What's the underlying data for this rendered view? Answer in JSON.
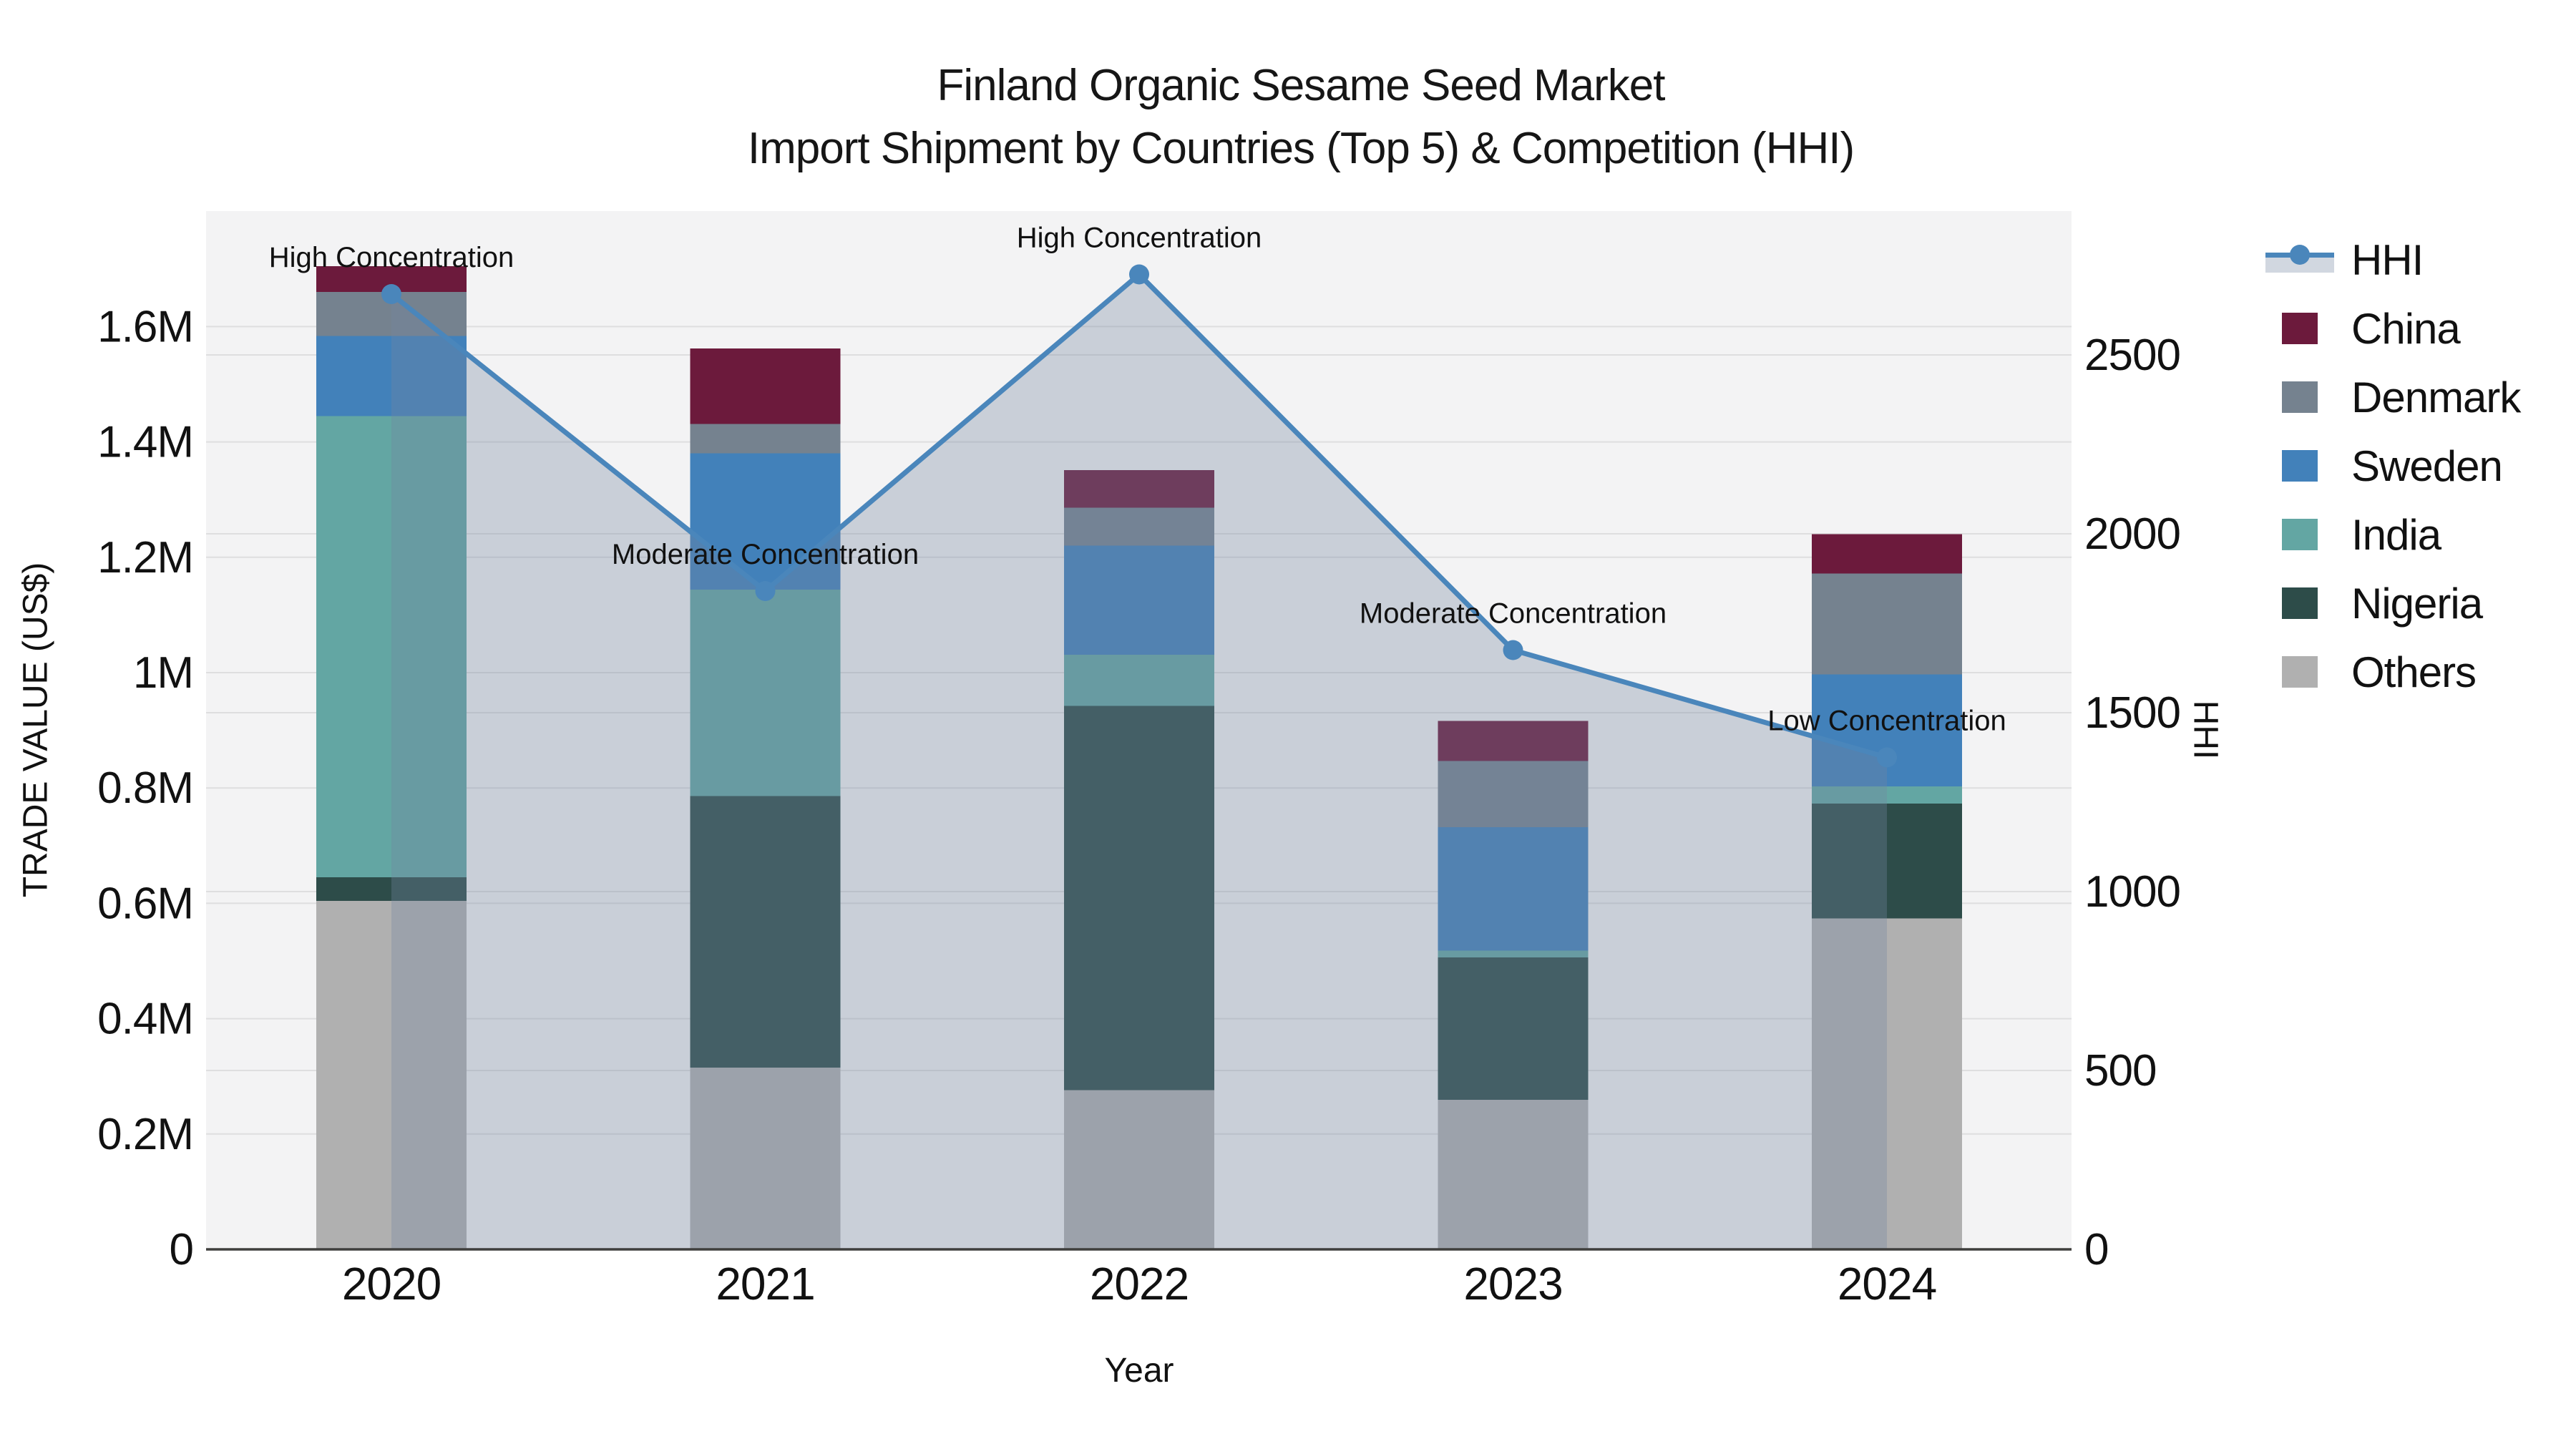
{
  "title": {
    "line1": "Finland Organic Sesame Seed Market",
    "line2": "Import Shipment by Countries (Top 5) & Competition (HHI)"
  },
  "axes": {
    "x_title": "Year",
    "y_left_title": "TRADE VALUE (US$)",
    "y_right_title": "HHI"
  },
  "colors": {
    "plot_background": "#F3F3F4",
    "gridline": "#DEDEDF",
    "axis_line": "#3F3F3D",
    "text": "#111111",
    "hhi_line": "#4A86BB",
    "hhi_area_fill": "rgba(114,135,162,0.33)",
    "china": "#6C1A3C",
    "denmark": "#75828F",
    "sweden": "#4281BA",
    "india": "#63A6A3",
    "nigeria": "#2D4C49",
    "others": "#B0B0B0"
  },
  "legend": {
    "items": [
      {
        "label": "HHI",
        "type": "line",
        "color": "#4A86BB"
      },
      {
        "label": "China",
        "type": "swatch",
        "color": "#6C1A3C"
      },
      {
        "label": "Denmark",
        "type": "swatch",
        "color": "#75828F"
      },
      {
        "label": "Sweden",
        "type": "swatch",
        "color": "#4281BA"
      },
      {
        "label": "India",
        "type": "swatch",
        "color": "#63A6A3"
      },
      {
        "label": "Nigeria",
        "type": "swatch",
        "color": "#2D4C49"
      },
      {
        "label": "Others",
        "type": "swatch",
        "color": "#B0B0B0"
      }
    ]
  },
  "chart_data": {
    "type": "bar",
    "subtype": "stacked-bars-with-line-overlay",
    "title": "Finland Organic Sesame Seed Market — Import Shipment by Countries (Top 5) & Competition (HHI)",
    "xlabel": "Year",
    "ylabel_left": "TRADE VALUE (US$)",
    "ylabel_right": "HHI",
    "categories": [
      "2020",
      "2021",
      "2022",
      "2023",
      "2024"
    ],
    "bar_value_unit": "million US$",
    "series": [
      {
        "name": "Others",
        "color": "#B0B0B0",
        "values": [
          0.604,
          0.315,
          0.276,
          0.259,
          0.574
        ]
      },
      {
        "name": "Nigeria",
        "color": "#2D4C49",
        "values": [
          0.041,
          0.471,
          0.666,
          0.247,
          0.199
        ]
      },
      {
        "name": "India",
        "color": "#63A6A3",
        "values": [
          0.8,
          0.358,
          0.089,
          0.012,
          0.03
        ]
      },
      {
        "name": "Sweden",
        "color": "#4281BA",
        "values": [
          0.139,
          0.236,
          0.189,
          0.214,
          0.194
        ]
      },
      {
        "name": "Denmark",
        "color": "#75828F",
        "values": [
          0.076,
          0.051,
          0.066,
          0.115,
          0.175
        ]
      },
      {
        "name": "China",
        "color": "#6C1A3C",
        "values": [
          0.045,
          0.131,
          0.065,
          0.069,
          0.068
        ]
      }
    ],
    "bar_totals": [
      1.705,
      1.562,
      1.351,
      0.916,
      1.24
    ],
    "line_series": {
      "name": "HHI",
      "color": "#4A86BB",
      "area_fill": "rgba(114,135,162,0.33)",
      "values": [
        2670,
        1840,
        2725,
        1675,
        1375
      ]
    },
    "annotations": [
      {
        "category": "2020",
        "label": "High Concentration"
      },
      {
        "category": "2021",
        "label": "Moderate Concentration"
      },
      {
        "category": "2022",
        "label": "High Concentration"
      },
      {
        "category": "2023",
        "label": "Moderate Concentration"
      },
      {
        "category": "2024",
        "label": "Low Concentration"
      }
    ],
    "y_left": {
      "range_musd": [
        0,
        1.8
      ],
      "tick_values": [
        0,
        0.2,
        0.4,
        0.6,
        0.8,
        1.0,
        1.2,
        1.4,
        1.6
      ],
      "tick_labels": [
        "0",
        "0.2M",
        "0.4M",
        "0.6M",
        "0.8M",
        "1M",
        "1.2M",
        "1.4M",
        "1.6M"
      ]
    },
    "y_right": {
      "range": [
        0,
        2902
      ],
      "tick_values": [
        0,
        500,
        1000,
        1500,
        2000,
        2500
      ],
      "tick_labels": [
        "0",
        "500",
        "1000",
        "1500",
        "2000",
        "2500"
      ]
    },
    "grid": true,
    "legend_position": "right"
  }
}
